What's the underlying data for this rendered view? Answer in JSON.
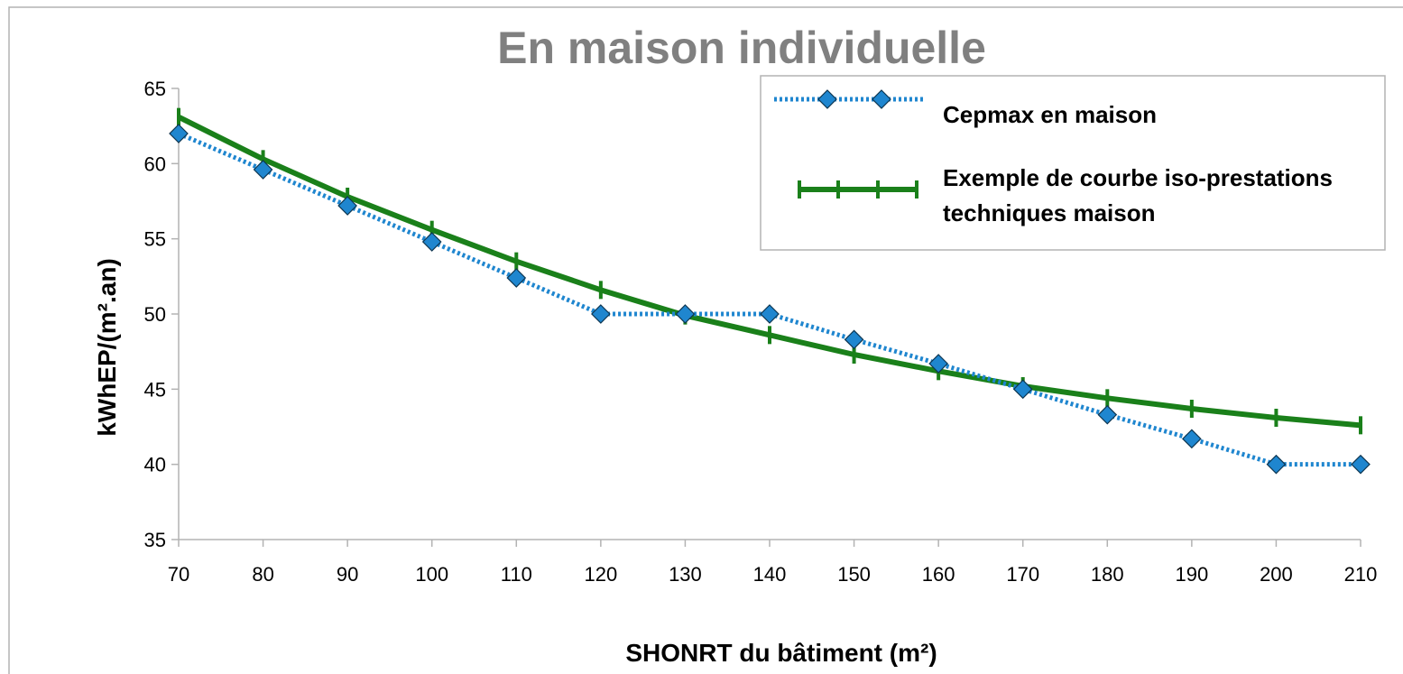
{
  "chart_data": {
    "type": "line",
    "title": "En maison individuelle",
    "xlabel": "SHONRT du bâtiment (m²)",
    "ylabel": "kWhEP/(m².an)",
    "x": [
      70,
      80,
      90,
      100,
      110,
      120,
      130,
      140,
      150,
      160,
      170,
      180,
      190,
      200,
      210
    ],
    "series": [
      {
        "name": "Cepmax en maison",
        "color": "#1f86cf",
        "marker": "diamond",
        "dash": true,
        "values": [
          62,
          59.6,
          57.2,
          54.8,
          52.4,
          50,
          50,
          50,
          48.3,
          46.7,
          45,
          43.3,
          41.7,
          40,
          40
        ]
      },
      {
        "name": "Exemple de courbe iso-prestations techniques maison",
        "color": "#1a801a",
        "marker": "tick",
        "dash": false,
        "values": [
          63.1,
          60.3,
          57.8,
          55.6,
          53.5,
          51.6,
          49.9,
          48.6,
          47.3,
          46.2,
          45.2,
          44.4,
          43.7,
          43.1,
          42.6
        ]
      }
    ],
    "xlim": [
      70,
      210
    ],
    "xticks": [
      70,
      80,
      90,
      100,
      110,
      120,
      130,
      140,
      150,
      160,
      170,
      180,
      190,
      200,
      210
    ],
    "ylim": [
      35,
      65
    ],
    "yticks": [
      35,
      40,
      45,
      50,
      55,
      60,
      65
    ],
    "grid": false,
    "legend": "top-right"
  }
}
